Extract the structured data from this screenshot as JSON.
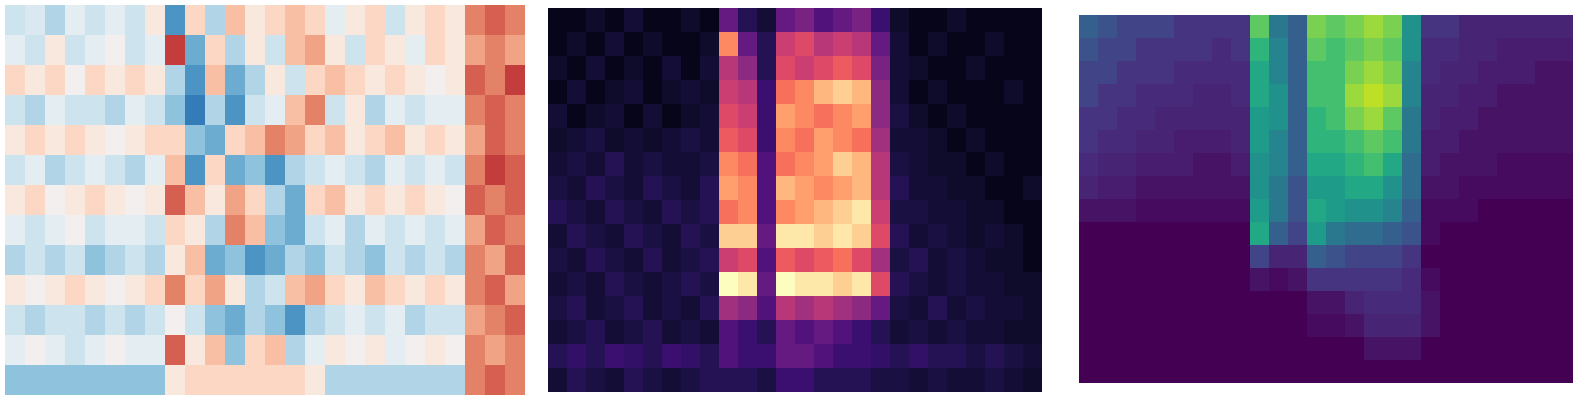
{
  "chart_data": [
    {
      "type": "heatmap",
      "color": "coolwarm",
      "color_range": [
        -1,
        1
      ],
      "tick_labels": false,
      "cells": [
        [
          -0.2,
          -0.15,
          -0.3,
          -0.1,
          -0.2,
          -0.1,
          -0.2,
          0.1,
          -0.6,
          0.2,
          -0.3,
          0.3,
          0.1,
          0.2,
          0.3,
          0.2,
          -0.1,
          0.1,
          0.2,
          -0.2,
          0.1,
          0.2,
          0.1,
          0.5,
          0.6,
          0.5
        ],
        [
          -0.1,
          -0.2,
          0.1,
          -0.2,
          -0.1,
          0.0,
          -0.2,
          -0.1,
          0.7,
          -0.5,
          0.2,
          -0.3,
          0.1,
          -0.2,
          0.3,
          0.4,
          0.1,
          -0.2,
          0.2,
          0.1,
          -0.1,
          0.2,
          0.1,
          0.4,
          0.5,
          0.4
        ],
        [
          0.2,
          0.1,
          0.2,
          0.0,
          0.2,
          0.1,
          0.2,
          0.1,
          -0.3,
          -0.6,
          0.3,
          -0.5,
          -0.3,
          0.1,
          -0.2,
          0.2,
          0.3,
          0.2,
          0.1,
          0.2,
          0.1,
          0.0,
          0.1,
          0.6,
          0.5,
          0.7
        ],
        [
          -0.2,
          -0.3,
          -0.1,
          -0.2,
          -0.2,
          -0.3,
          -0.1,
          -0.2,
          -0.4,
          -0.7,
          -0.3,
          -0.6,
          -0.2,
          -0.1,
          0.3,
          0.5,
          -0.2,
          0.1,
          -0.3,
          -0.1,
          -0.2,
          -0.1,
          -0.1,
          0.5,
          0.6,
          0.5
        ],
        [
          0.1,
          0.2,
          0.1,
          0.2,
          0.1,
          0.0,
          0.1,
          0.2,
          0.2,
          -0.4,
          -0.5,
          0.2,
          0.3,
          0.5,
          0.4,
          0.2,
          0.3,
          0.1,
          0.2,
          0.3,
          0.1,
          0.2,
          0.1,
          0.4,
          0.6,
          0.5
        ],
        [
          -0.2,
          -0.1,
          -0.3,
          -0.2,
          -0.1,
          -0.2,
          -0.3,
          -0.1,
          0.3,
          -0.6,
          0.2,
          -0.5,
          -0.4,
          -0.6,
          -0.3,
          -0.2,
          -0.1,
          -0.2,
          -0.3,
          -0.1,
          -0.2,
          -0.1,
          -0.2,
          0.5,
          0.7,
          0.6
        ],
        [
          0.1,
          0.2,
          0.0,
          0.1,
          0.2,
          0.1,
          0.0,
          0.1,
          0.6,
          0.3,
          0.1,
          0.4,
          0.2,
          -0.3,
          -0.5,
          0.2,
          0.3,
          0.1,
          0.2,
          0.1,
          0.2,
          0.1,
          0.0,
          0.6,
          0.5,
          0.6
        ],
        [
          -0.1,
          -0.2,
          -0.1,
          0.0,
          -0.2,
          -0.1,
          -0.1,
          -0.2,
          0.2,
          0.1,
          -0.3,
          0.5,
          0.3,
          -0.4,
          -0.5,
          -0.2,
          -0.1,
          -0.3,
          -0.1,
          -0.2,
          -0.1,
          -0.2,
          -0.1,
          0.4,
          0.6,
          0.5
        ],
        [
          -0.3,
          -0.2,
          -0.3,
          -0.2,
          -0.4,
          -0.3,
          -0.2,
          -0.3,
          0.1,
          0.3,
          -0.5,
          -0.4,
          -0.6,
          -0.5,
          -0.3,
          -0.4,
          -0.2,
          -0.3,
          -0.4,
          -0.2,
          -0.3,
          -0.2,
          -0.3,
          0.5,
          0.4,
          0.6
        ],
        [
          0.1,
          0.0,
          0.1,
          0.2,
          0.1,
          0.0,
          0.1,
          0.2,
          0.5,
          0.2,
          0.4,
          0.1,
          -0.3,
          -0.2,
          0.3,
          0.4,
          0.2,
          0.1,
          0.3,
          0.2,
          0.1,
          0.2,
          0.1,
          0.5,
          0.6,
          0.4
        ],
        [
          -0.2,
          -0.3,
          -0.2,
          -0.2,
          -0.3,
          -0.2,
          -0.3,
          -0.2,
          0.0,
          -0.2,
          -0.4,
          -0.5,
          -0.3,
          -0.4,
          -0.6,
          -0.3,
          -0.2,
          -0.1,
          -0.2,
          -0.1,
          -0.3,
          -0.2,
          -0.2,
          0.4,
          0.5,
          0.6
        ],
        [
          -0.1,
          0.0,
          -0.1,
          -0.2,
          -0.1,
          0.0,
          -0.1,
          -0.1,
          0.6,
          0.1,
          0.3,
          -0.4,
          0.2,
          0.3,
          -0.3,
          -0.1,
          0.1,
          0.0,
          0.1,
          -0.1,
          0.0,
          0.1,
          0.0,
          0.5,
          0.4,
          0.5
        ],
        [
          -0.4,
          -0.4,
          -0.4,
          -0.4,
          -0.4,
          -0.4,
          -0.4,
          -0.4,
          0.1,
          0.2,
          0.2,
          0.2,
          0.2,
          0.2,
          0.2,
          0.1,
          -0.3,
          -0.3,
          -0.3,
          -0.3,
          -0.3,
          -0.3,
          -0.3,
          0.5,
          0.6,
          0.5
        ]
      ]
    },
    {
      "type": "heatmap",
      "color": "magma",
      "color_range": [
        0,
        1
      ],
      "tick_labels": false,
      "cells": [
        [
          0.05,
          0.05,
          0.08,
          0.05,
          0.1,
          0.05,
          0.05,
          0.08,
          0.05,
          0.3,
          0.15,
          0.1,
          0.3,
          0.35,
          0.25,
          0.3,
          0.35,
          0.2,
          0.08,
          0.05,
          0.05,
          0.08,
          0.05,
          0.05,
          0.05,
          0.05
        ],
        [
          0.05,
          0.08,
          0.05,
          0.1,
          0.05,
          0.08,
          0.05,
          0.05,
          0.08,
          0.75,
          0.3,
          0.15,
          0.55,
          0.6,
          0.5,
          0.55,
          0.5,
          0.3,
          0.1,
          0.05,
          0.08,
          0.05,
          0.05,
          0.08,
          0.05,
          0.05
        ],
        [
          0.08,
          0.05,
          0.1,
          0.05,
          0.08,
          0.05,
          0.1,
          0.05,
          0.1,
          0.5,
          0.4,
          0.15,
          0.6,
          0.55,
          0.6,
          0.65,
          0.6,
          0.35,
          0.1,
          0.08,
          0.05,
          0.05,
          0.08,
          0.05,
          0.05,
          0.05
        ],
        [
          0.05,
          0.1,
          0.05,
          0.08,
          0.1,
          0.05,
          0.08,
          0.1,
          0.08,
          0.55,
          0.5,
          0.2,
          0.7,
          0.75,
          0.85,
          0.9,
          0.85,
          0.4,
          0.1,
          0.05,
          0.08,
          0.05,
          0.05,
          0.05,
          0.08,
          0.05
        ],
        [
          0.1,
          0.05,
          0.08,
          0.1,
          0.05,
          0.1,
          0.05,
          0.08,
          0.1,
          0.6,
          0.55,
          0.2,
          0.8,
          0.75,
          0.7,
          0.75,
          0.8,
          0.4,
          0.12,
          0.08,
          0.05,
          0.08,
          0.05,
          0.05,
          0.05,
          0.05
        ],
        [
          0.08,
          0.1,
          0.12,
          0.08,
          0.1,
          0.08,
          0.1,
          0.12,
          0.1,
          0.65,
          0.6,
          0.2,
          0.75,
          0.7,
          0.8,
          0.75,
          0.7,
          0.45,
          0.1,
          0.1,
          0.08,
          0.05,
          0.08,
          0.05,
          0.05,
          0.05
        ],
        [
          0.1,
          0.12,
          0.1,
          0.15,
          0.1,
          0.12,
          0.1,
          0.1,
          0.12,
          0.75,
          0.7,
          0.25,
          0.7,
          0.75,
          0.8,
          0.9,
          0.85,
          0.5,
          0.12,
          0.1,
          0.08,
          0.08,
          0.05,
          0.08,
          0.05,
          0.05
        ],
        [
          0.12,
          0.1,
          0.15,
          0.12,
          0.1,
          0.15,
          0.12,
          0.1,
          0.15,
          0.8,
          0.75,
          0.25,
          0.85,
          0.8,
          0.75,
          0.8,
          0.85,
          0.5,
          0.15,
          0.1,
          0.1,
          0.08,
          0.08,
          0.05,
          0.05,
          0.08
        ],
        [
          0.15,
          0.12,
          0.1,
          0.15,
          0.12,
          0.1,
          0.15,
          0.12,
          0.15,
          0.7,
          0.75,
          0.25,
          0.75,
          0.8,
          0.85,
          0.9,
          0.95,
          0.55,
          0.12,
          0.12,
          0.1,
          0.1,
          0.08,
          0.08,
          0.05,
          0.05
        ],
        [
          0.1,
          0.15,
          0.12,
          0.1,
          0.15,
          0.12,
          0.1,
          0.15,
          0.12,
          0.9,
          0.9,
          0.3,
          0.95,
          0.95,
          0.9,
          0.95,
          0.9,
          0.6,
          0.15,
          0.1,
          0.12,
          0.1,
          0.08,
          0.1,
          0.08,
          0.05
        ],
        [
          0.12,
          0.1,
          0.15,
          0.12,
          0.1,
          0.15,
          0.1,
          0.12,
          0.15,
          0.55,
          0.6,
          0.25,
          0.65,
          0.6,
          0.65,
          0.7,
          0.6,
          0.45,
          0.12,
          0.15,
          0.1,
          0.12,
          0.1,
          0.08,
          0.08,
          0.05
        ],
        [
          0.1,
          0.12,
          0.1,
          0.15,
          0.12,
          0.1,
          0.12,
          0.15,
          0.12,
          1.0,
          0.95,
          0.3,
          1.0,
          0.95,
          0.95,
          0.9,
          0.95,
          0.6,
          0.15,
          0.12,
          0.1,
          0.12,
          0.1,
          0.1,
          0.08,
          0.08
        ],
        [
          0.12,
          0.15,
          0.1,
          0.12,
          0.15,
          0.1,
          0.12,
          0.1,
          0.15,
          0.45,
          0.4,
          0.25,
          0.5,
          0.45,
          0.5,
          0.45,
          0.4,
          0.3,
          0.12,
          0.1,
          0.15,
          0.1,
          0.12,
          0.1,
          0.1,
          0.08
        ],
        [
          0.1,
          0.12,
          0.15,
          0.1,
          0.12,
          0.15,
          0.1,
          0.12,
          0.1,
          0.25,
          0.2,
          0.15,
          0.3,
          0.25,
          0.3,
          0.25,
          0.2,
          0.15,
          0.1,
          0.12,
          0.1,
          0.12,
          0.1,
          0.1,
          0.08,
          0.08
        ],
        [
          0.15,
          0.18,
          0.15,
          0.2,
          0.18,
          0.15,
          0.2,
          0.18,
          0.15,
          0.25,
          0.2,
          0.2,
          0.3,
          0.3,
          0.25,
          0.2,
          0.2,
          0.18,
          0.15,
          0.18,
          0.15,
          0.15,
          0.12,
          0.15,
          0.12,
          0.1
        ],
        [
          0.1,
          0.15,
          0.12,
          0.1,
          0.15,
          0.12,
          0.1,
          0.12,
          0.15,
          0.15,
          0.15,
          0.12,
          0.2,
          0.2,
          0.15,
          0.15,
          0.15,
          0.12,
          0.12,
          0.1,
          0.12,
          0.1,
          0.1,
          0.12,
          0.1,
          0.08
        ]
      ]
    },
    {
      "type": "heatmap",
      "color": "viridis",
      "color_range": [
        0,
        1
      ],
      "tick_labels": false,
      "cells": [
        [
          0.3,
          0.25,
          0.2,
          0.2,
          0.2,
          0.15,
          0.15,
          0.15,
          0.15,
          0.75,
          0.4,
          0.3,
          0.8,
          0.75,
          0.8,
          0.85,
          0.8,
          0.5,
          0.15,
          0.15,
          0.1,
          0.1,
          0.1,
          0.1,
          0.1,
          0.1
        ],
        [
          0.25,
          0.2,
          0.2,
          0.15,
          0.15,
          0.15,
          0.15,
          0.12,
          0.15,
          0.65,
          0.45,
          0.3,
          0.75,
          0.7,
          0.75,
          0.8,
          0.75,
          0.5,
          0.12,
          0.12,
          0.1,
          0.1,
          0.08,
          0.08,
          0.08,
          0.08
        ],
        [
          0.2,
          0.2,
          0.15,
          0.15,
          0.15,
          0.12,
          0.12,
          0.12,
          0.12,
          0.6,
          0.45,
          0.3,
          0.7,
          0.7,
          0.8,
          0.85,
          0.8,
          0.45,
          0.12,
          0.1,
          0.1,
          0.08,
          0.08,
          0.08,
          0.05,
          0.05
        ],
        [
          0.2,
          0.15,
          0.15,
          0.12,
          0.12,
          0.12,
          0.1,
          0.1,
          0.12,
          0.6,
          0.5,
          0.3,
          0.7,
          0.7,
          0.85,
          0.9,
          0.85,
          0.45,
          0.1,
          0.1,
          0.08,
          0.08,
          0.05,
          0.05,
          0.05,
          0.05
        ],
        [
          0.15,
          0.15,
          0.12,
          0.12,
          0.1,
          0.1,
          0.1,
          0.1,
          0.1,
          0.55,
          0.5,
          0.3,
          0.65,
          0.7,
          0.8,
          0.85,
          0.75,
          0.4,
          0.1,
          0.08,
          0.08,
          0.05,
          0.05,
          0.05,
          0.05,
          0.05
        ],
        [
          0.15,
          0.12,
          0.12,
          0.1,
          0.1,
          0.08,
          0.08,
          0.08,
          0.1,
          0.55,
          0.45,
          0.3,
          0.65,
          0.65,
          0.7,
          0.75,
          0.7,
          0.4,
          0.08,
          0.08,
          0.05,
          0.05,
          0.05,
          0.05,
          0.05,
          0.05
        ],
        [
          0.12,
          0.1,
          0.1,
          0.08,
          0.08,
          0.08,
          0.05,
          0.05,
          0.08,
          0.5,
          0.45,
          0.3,
          0.6,
          0.6,
          0.65,
          0.7,
          0.6,
          0.35,
          0.08,
          0.05,
          0.05,
          0.05,
          0.03,
          0.03,
          0.03,
          0.03
        ],
        [
          0.1,
          0.08,
          0.08,
          0.05,
          0.05,
          0.05,
          0.05,
          0.05,
          0.05,
          0.5,
          0.4,
          0.25,
          0.55,
          0.55,
          0.6,
          0.6,
          0.5,
          0.35,
          0.05,
          0.05,
          0.03,
          0.03,
          0.03,
          0.03,
          0.03,
          0.03
        ],
        [
          0.05,
          0.05,
          0.05,
          0.03,
          0.03,
          0.03,
          0.03,
          0.03,
          0.03,
          0.55,
          0.4,
          0.25,
          0.6,
          0.55,
          0.5,
          0.5,
          0.45,
          0.3,
          0.03,
          0.03,
          0.03,
          0,
          0,
          0,
          0,
          0
        ],
        [
          0,
          0,
          0,
          0,
          0,
          0,
          0,
          0,
          0,
          0.6,
          0.3,
          0.2,
          0.55,
          0.4,
          0.35,
          0.35,
          0.3,
          0.25,
          0.03,
          0,
          0,
          0,
          0,
          0,
          0,
          0
        ],
        [
          0,
          0,
          0,
          0,
          0,
          0,
          0,
          0,
          0,
          0.2,
          0.1,
          0.1,
          0.3,
          0.25,
          0.2,
          0.2,
          0.2,
          0.15,
          0,
          0,
          0,
          0,
          0,
          0,
          0,
          0
        ],
        [
          0,
          0,
          0,
          0,
          0,
          0,
          0,
          0,
          0,
          0.05,
          0.03,
          0.05,
          0.15,
          0.15,
          0.15,
          0.15,
          0.15,
          0.12,
          0.03,
          0,
          0,
          0,
          0,
          0,
          0,
          0
        ],
        [
          0,
          0,
          0,
          0,
          0,
          0,
          0,
          0,
          0,
          0,
          0,
          0,
          0.05,
          0.05,
          0.1,
          0.12,
          0.12,
          0.12,
          0.05,
          0,
          0,
          0,
          0,
          0,
          0,
          0
        ],
        [
          0,
          0,
          0,
          0,
          0,
          0,
          0,
          0,
          0,
          0,
          0,
          0,
          0.03,
          0.03,
          0.05,
          0.1,
          0.1,
          0.1,
          0.05,
          0,
          0,
          0,
          0,
          0,
          0,
          0
        ],
        [
          0,
          0,
          0,
          0,
          0,
          0,
          0,
          0,
          0,
          0,
          0,
          0,
          0,
          0,
          0,
          0.05,
          0.05,
          0.05,
          0,
          0,
          0,
          0,
          0,
          0,
          0,
          0
        ],
        [
          0,
          0,
          0,
          0,
          0,
          0,
          0,
          0,
          0,
          0,
          0,
          0,
          0,
          0,
          0,
          0,
          0,
          0,
          0,
          0,
          0,
          0,
          0,
          0,
          0,
          0
        ]
      ]
    }
  ]
}
